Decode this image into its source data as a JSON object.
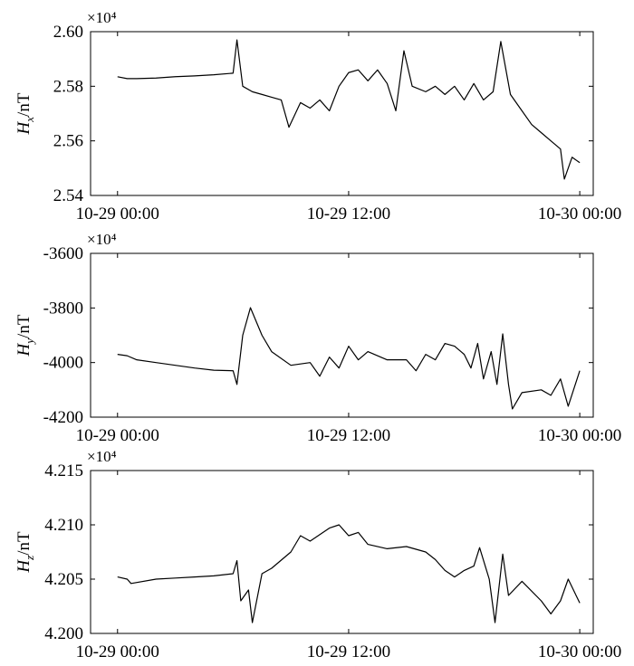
{
  "chart_data": [
    {
      "type": "line",
      "multiplier": "×10⁴",
      "ylabel": {
        "symbol": "H",
        "subscript": "x",
        "unit": "/nT"
      },
      "xlim": [
        -1.4,
        24.7
      ],
      "xticks": [
        {
          "value": 0,
          "label": "10-29 00:00"
        },
        {
          "value": 12,
          "label": "10-29 12:00"
        },
        {
          "value": 24,
          "label": "10-30 00:00"
        }
      ],
      "ylim": [
        2.54,
        2.6
      ],
      "yticks": [
        2.54,
        2.56,
        2.58,
        {
          "value": 2.6,
          "label": "2.60"
        }
      ],
      "series": [
        {
          "color": "#000000",
          "x": [
            0,
            0.5,
            1,
            2,
            3,
            4,
            5,
            6,
            6.2,
            6.5,
            7,
            7.5,
            8,
            8.5,
            8.9,
            9.5,
            10,
            10.5,
            11,
            11.5,
            12,
            12.5,
            13,
            13.5,
            14,
            14.45,
            14.87,
            15.3,
            16,
            16.5,
            17,
            17.5,
            18,
            18.5,
            19,
            19.5,
            19.9,
            20.4,
            20.9,
            21.5,
            22,
            22.5,
            23,
            23.2,
            23.6,
            24
          ],
          "values": [
            2.5835,
            2.5828,
            2.5828,
            2.583,
            2.5835,
            2.5838,
            2.5842,
            2.5848,
            2.597,
            2.58,
            2.578,
            2.577,
            2.576,
            2.575,
            2.565,
            2.574,
            2.572,
            2.575,
            2.571,
            2.58,
            2.585,
            2.586,
            2.582,
            2.586,
            2.581,
            2.571,
            2.593,
            2.58,
            2.578,
            2.58,
            2.577,
            2.58,
            2.575,
            2.581,
            2.575,
            2.578,
            2.5964,
            2.577,
            2.572,
            2.566,
            2.563,
            2.56,
            2.557,
            2.546,
            2.554,
            2.552
          ]
        }
      ]
    },
    {
      "type": "line",
      "multiplier": "×10⁴",
      "ylabel": {
        "symbol": "H",
        "subscript": "y",
        "unit": "/nT"
      },
      "xlim": [
        -1.4,
        24.7
      ],
      "xticks": [
        {
          "value": 0,
          "label": "10-29 00:00"
        },
        {
          "value": 12,
          "label": "10-29 12:00"
        },
        {
          "value": 24,
          "label": "10-30 00:00"
        }
      ],
      "ylim": [
        -4200,
        -3600
      ],
      "yticks": [
        -4200,
        -4000,
        -3800,
        -3600
      ],
      "series": [
        {
          "color": "#000000",
          "x": [
            0,
            0.5,
            1,
            2,
            3,
            4,
            5,
            6,
            6.2,
            6.5,
            6.9,
            7.5,
            8,
            9,
            10,
            10.5,
            11,
            11.5,
            12,
            12.5,
            13,
            14,
            15,
            15.5,
            16,
            16.5,
            17,
            17.5,
            18,
            18.35,
            18.7,
            19,
            19.4,
            19.7,
            20,
            20.3,
            20.5,
            21,
            22,
            22.5,
            23,
            23.4,
            24
          ],
          "values": [
            -3970,
            -3975,
            -3990,
            -4000,
            -4010,
            -4020,
            -4028,
            -4030,
            -4080,
            -3900,
            -3799,
            -3900,
            -3960,
            -4010,
            -4000,
            -4050,
            -3980,
            -4020,
            -3940,
            -3990,
            -3960,
            -3990,
            -3990,
            -4030,
            -3970,
            -3990,
            -3930,
            -3940,
            -3970,
            -4020,
            -3930,
            -4060,
            -3960,
            -4080,
            -3895,
            -4080,
            -4170,
            -4110,
            -4100,
            -4120,
            -4060,
            -4160,
            -4030
          ]
        }
      ]
    },
    {
      "type": "line",
      "multiplier": "×10⁴",
      "ylabel": {
        "symbol": "H",
        "subscript": "z",
        "unit": "/nT"
      },
      "xlim": [
        -1.4,
        24.7
      ],
      "xticks": [
        {
          "value": 0,
          "label": "10-29 00:00"
        },
        {
          "value": 12,
          "label": "10-29 12:00"
        },
        {
          "value": 24,
          "label": "10-30 00:00"
        }
      ],
      "ylim": [
        4.2,
        4.215
      ],
      "yticks": [
        {
          "value": 4.2,
          "label": "4.200"
        },
        4.205,
        {
          "value": 4.21,
          "label": "4.210"
        },
        4.215
      ],
      "series": [
        {
          "color": "#000000",
          "x": [
            0,
            0.5,
            0.7,
            2,
            3,
            4,
            5,
            6,
            6.2,
            6.4,
            6.8,
            7,
            7.5,
            8,
            9,
            9.5,
            10,
            11,
            11.5,
            12,
            12.5,
            13,
            14,
            15,
            16,
            16.5,
            17,
            17.5,
            18,
            18.5,
            18.8,
            19.3,
            19.6,
            20,
            20.3,
            21,
            22,
            22.5,
            23,
            23.4,
            24
          ],
          "values": [
            4.2052,
            4.205,
            4.2046,
            4.205,
            4.2051,
            4.2052,
            4.2053,
            4.2055,
            4.2067,
            4.203,
            4.204,
            4.201,
            4.2055,
            4.206,
            4.2075,
            4.209,
            4.2085,
            4.2097,
            4.21,
            4.209,
            4.2093,
            4.2082,
            4.2078,
            4.208,
            4.2075,
            4.2068,
            4.2058,
            4.2052,
            4.2058,
            4.2062,
            4.2079,
            4.205,
            4.201,
            4.2073,
            4.2035,
            4.2048,
            4.203,
            4.2018,
            4.203,
            4.205,
            4.2028
          ]
        }
      ]
    }
  ]
}
